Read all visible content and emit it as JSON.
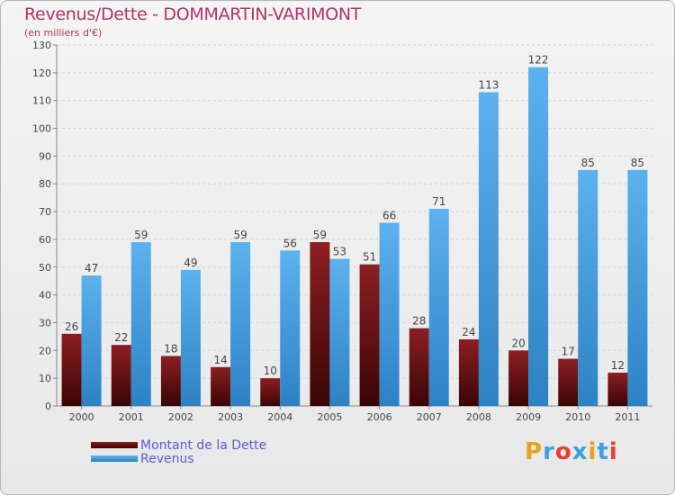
{
  "header": {
    "title": "Revenus/Dette - DOMMARTIN-VARIMONT",
    "subtitle": "(en milliers d'€)"
  },
  "legend": {
    "items": [
      {
        "label": "Montant de la Dette",
        "color": "#6b0f12"
      },
      {
        "label": "Revenus",
        "color": "#3f9fe0"
      }
    ]
  },
  "brand": {
    "letters": [
      "P",
      "r",
      "o",
      "x",
      "i",
      "t",
      "i"
    ],
    "colors": [
      "#e8a020",
      "#3fa0e0",
      "#e84030",
      "#3fa0e0",
      "#e8a020",
      "#3fa0e0",
      "#e84030"
    ]
  },
  "chart_data": {
    "type": "bar",
    "categories": [
      "2000",
      "2001",
      "2002",
      "2003",
      "2004",
      "2005",
      "2006",
      "2007",
      "2008",
      "2009",
      "2010",
      "2011"
    ],
    "series": [
      {
        "name": "Montant de la Dette",
        "color": "#6b0f12",
        "values": [
          26,
          22,
          18,
          14,
          10,
          59,
          51,
          28,
          24,
          20,
          17,
          12
        ]
      },
      {
        "name": "Revenus",
        "color": "#3f9fe0",
        "values": [
          47,
          59,
          49,
          59,
          56,
          53,
          66,
          71,
          113,
          122,
          85,
          85
        ]
      }
    ],
    "title": "Revenus/Dette - DOMMARTIN-VARIMONT",
    "ylim": [
      0,
      130
    ],
    "yticks": [
      0,
      10,
      20,
      30,
      40,
      50,
      60,
      70,
      80,
      90,
      100,
      110,
      120,
      130
    ],
    "grid": true,
    "legend": "bottom-left"
  }
}
